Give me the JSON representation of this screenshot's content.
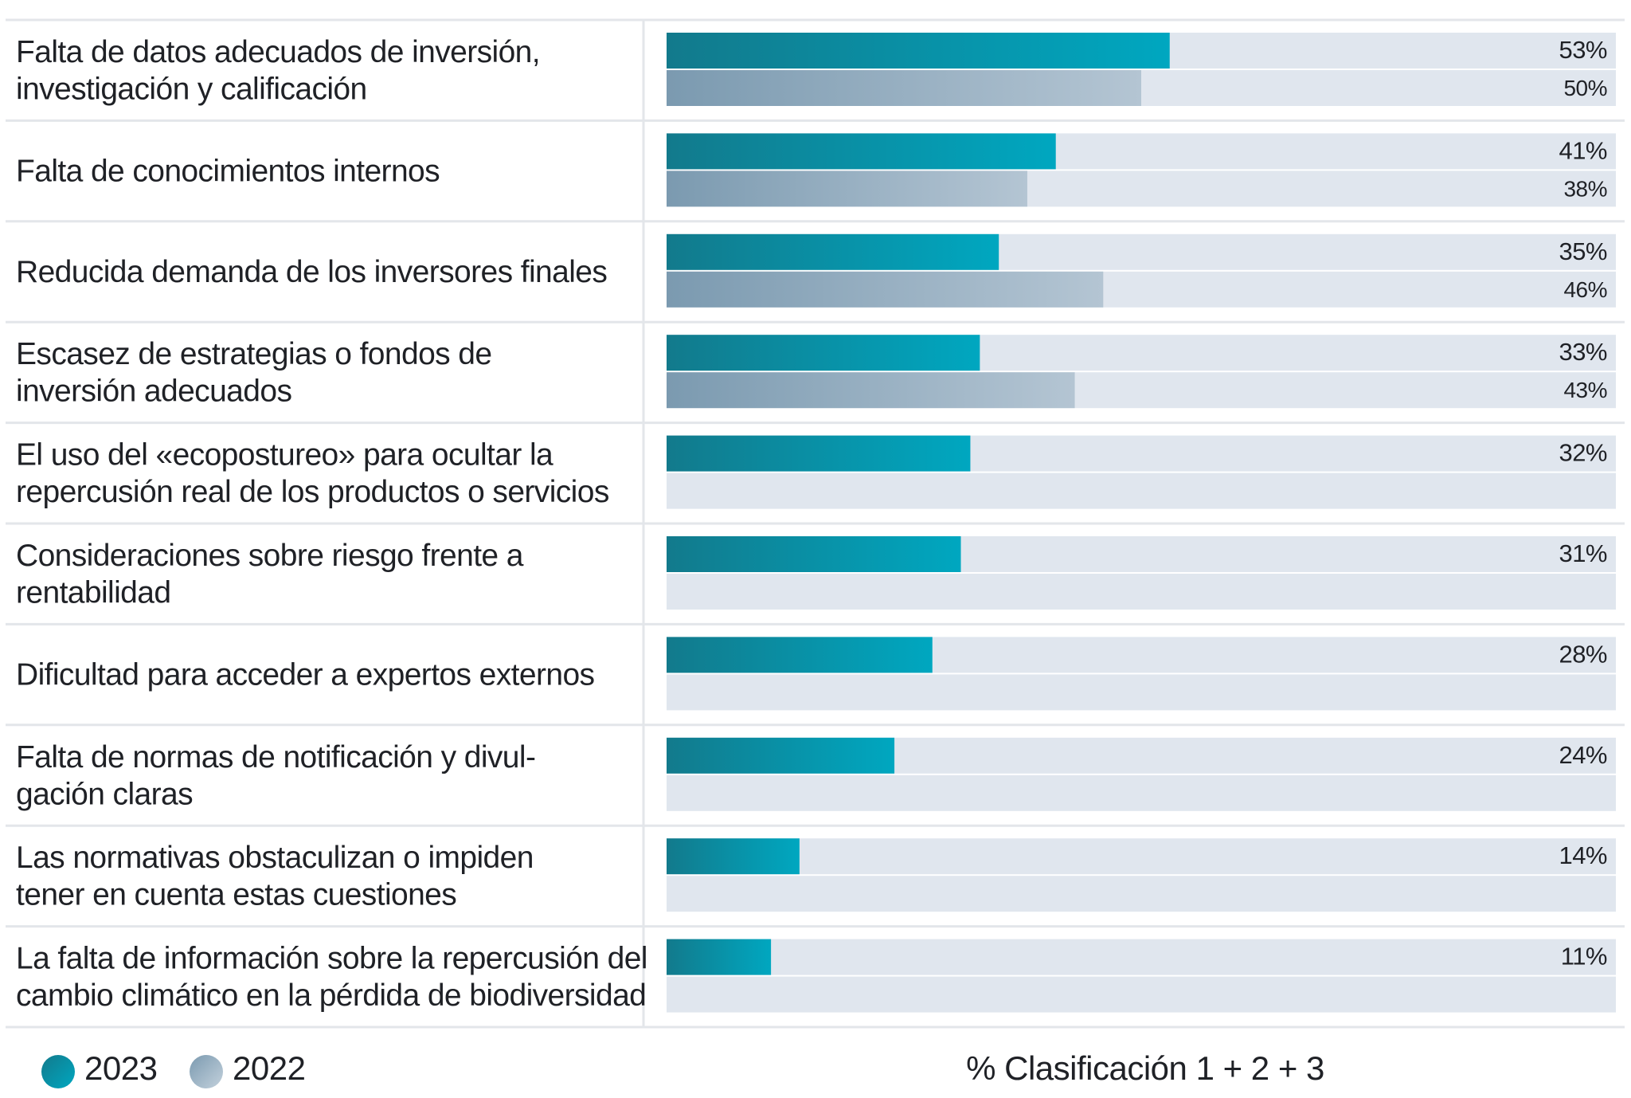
{
  "chart_data": {
    "type": "bar",
    "orientation": "horizontal",
    "xlim": [
      0,
      100
    ],
    "categories": [
      [
        "Falta de datos adecuados de inversión,",
        "investigación y calificación"
      ],
      [
        "Falta de conocimientos internos"
      ],
      [
        "Reducida demanda de los inversores finales"
      ],
      [
        "Escasez de estrategias o fondos de",
        "inversión adecuados"
      ],
      [
        "El uso del «ecopostureo» para ocultar la",
        "repercusión real de los productos o servicios"
      ],
      [
        "Consideraciones sobre riesgo frente a",
        "rentabilidad"
      ],
      [
        "Dificultad para acceder a expertos externos"
      ],
      [
        "Falta de normas de notificación y divul-",
        "gación claras"
      ],
      [
        "Las normativas obstaculizan o impiden",
        "tener en cuenta estas cuestiones"
      ],
      [
        "La falta de información sobre la repercusión del",
        "cambio climático en la pérdida de biodiversidad"
      ]
    ],
    "series": [
      {
        "name": "2023",
        "values": [
          53,
          41,
          35,
          33,
          32,
          31,
          28,
          24,
          14,
          11
        ],
        "labels": [
          "53%",
          "41%",
          "35%",
          "33%",
          "32%",
          "31%",
          "28%",
          "24%",
          "14%",
          "11%"
        ],
        "color_start": "#127a8c",
        "color_end": "#00a7c0"
      },
      {
        "name": "2022",
        "values": [
          50,
          38,
          46,
          43,
          null,
          null,
          null,
          null,
          null,
          null
        ],
        "labels": [
          "50%",
          "38%",
          "46%",
          "43%",
          "",
          "",
          "",
          "",
          "",
          ""
        ],
        "color_start": "#7b9ab0",
        "color_end": "#b4c5d3"
      }
    ],
    "track_color": "#e0e6ee",
    "legend": [
      {
        "label": "2023",
        "color": "#0f8fa3"
      },
      {
        "label": "2022",
        "color": "#9fb4c6"
      }
    ],
    "xlabel": "% Clasificación 1 + 2 + 3"
  }
}
